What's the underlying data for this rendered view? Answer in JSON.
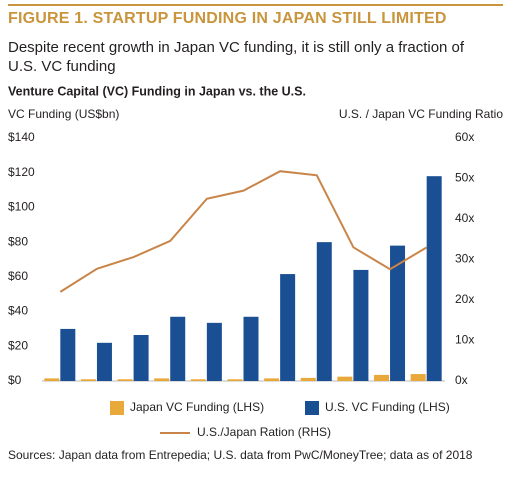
{
  "chart_data": {
    "type": "bar",
    "title": "FIGURE 1. STARTUP FUNDING IN JAPAN STILL LIMITED",
    "subtitle": "Despite recent growth in Japan VC funding, it is still only a fraction of U.S. VC funding",
    "chart_title": "Venture Capital (VC) Funding in Japan vs. the U.S.",
    "ylabel": "VC Funding (US$bn)",
    "y2label": "U.S. / Japan VC Funding Ratio",
    "source": "Sources: Japan data from Entrepedia; U.S. data from PwC/MoneyTree; data as of 2018",
    "categories": [
      null,
      null,
      null,
      null,
      null,
      null,
      null,
      null,
      null,
      null,
      null
    ],
    "series": [
      {
        "name": "Japan VC Funding (LHS)",
        "color": "#e9a83a",
        "values": [
          1.5,
          1,
          1,
          1.5,
          1,
          1,
          1.5,
          1.8,
          2.5,
          3.5,
          4
        ]
      },
      {
        "name": "U.S. VC Funding (LHS)",
        "color": "#1b4f93",
        "values": [
          30,
          22,
          26.5,
          37,
          33.5,
          37,
          61.6,
          80,
          64,
          78,
          118
        ]
      },
      {
        "name": "U.S./Japan Ration (RHS)",
        "color": "#c98549",
        "type": "line",
        "axis": "y2",
        "values": [
          22,
          27.7,
          30.6,
          34.6,
          45,
          47,
          51.8,
          50.8,
          33,
          27.6,
          33
        ]
      }
    ],
    "ylim": [
      0,
      140
    ],
    "yticks": [
      {
        "value": 0,
        "label": "$0"
      },
      {
        "value": 20,
        "label": "$20"
      },
      {
        "value": 40,
        "label": "$40"
      },
      {
        "value": 60,
        "label": "$60"
      },
      {
        "value": 80,
        "label": "$80"
      },
      {
        "value": 100,
        "label": "$100"
      },
      {
        "value": 120,
        "label": "$120"
      },
      {
        "value": 140,
        "label": "$140"
      }
    ],
    "y2lim": [
      0,
      60
    ],
    "y2ticks": [
      {
        "value": 0,
        "label": "0x"
      },
      {
        "value": 10,
        "label": "10x"
      },
      {
        "value": 20,
        "label": "20x"
      },
      {
        "value": 30,
        "label": "30x"
      },
      {
        "value": 40,
        "label": "40x"
      },
      {
        "value": 50,
        "label": "50x"
      },
      {
        "value": 60,
        "label": "60x"
      }
    ],
    "grid": false
  }
}
